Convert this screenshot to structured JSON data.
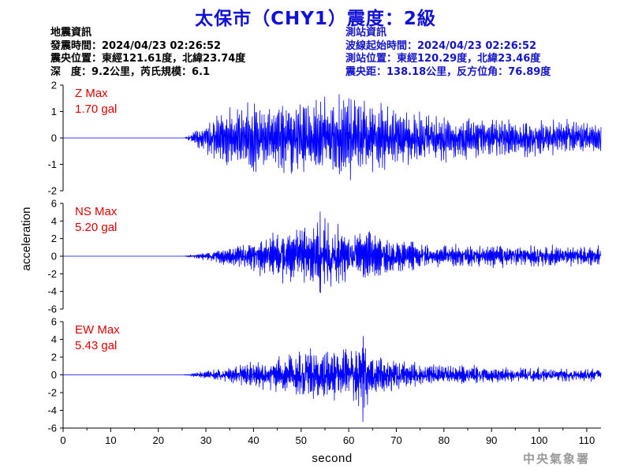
{
  "header": {
    "title": "太保市（CHY1）震度：2級",
    "footer": "中央氣象署"
  },
  "quake_info": {
    "lines": [
      "地震資訊",
      "發震時間：2024/04/23 02:26:52",
      "震央位置：東經121.61度，北緯23.74度",
      "深　度：9.2公里，芮氏規模：6.1"
    ]
  },
  "station_info": {
    "lines": [
      "測站資訊",
      "波線起始時間：2024/04/23 02:26:52",
      "測站位置：東經120.29度，北緯23.46度",
      "震央距：138.18公里，反方位角：76.89度"
    ]
  },
  "colors": {
    "trace": "#0000ff",
    "max_label": "#e00000",
    "axis": "#000000"
  },
  "chart_data": [
    {
      "type": "line",
      "component": "Z",
      "max_label": "Z Max",
      "max_value_label": "1.70 gal",
      "peak": 1.7,
      "ylim": [
        -2,
        2
      ],
      "yticks": [
        -2,
        -1,
        0,
        1,
        2
      ],
      "xlim": [
        0,
        113
      ],
      "onset": 26,
      "envelope": [
        [
          0,
          0
        ],
        [
          25.5,
          0.02
        ],
        [
          27,
          0.18
        ],
        [
          30,
          0.55
        ],
        [
          33,
          0.85
        ],
        [
          36,
          1.05
        ],
        [
          40,
          1.15
        ],
        [
          45,
          1.2
        ],
        [
          52,
          1.2
        ],
        [
          58,
          1.3
        ],
        [
          63,
          1.2
        ],
        [
          68,
          0.95
        ],
        [
          75,
          0.8
        ],
        [
          85,
          0.72
        ],
        [
          95,
          0.65
        ],
        [
          105,
          0.58
        ],
        [
          113,
          0.52
        ]
      ]
    },
    {
      "type": "line",
      "component": "NS",
      "max_label": "NS Max",
      "max_value_label": "5.20 gal",
      "peak": 5.2,
      "ylim": [
        -6,
        6
      ],
      "yticks": [
        -6,
        -4,
        -2,
        0,
        2,
        4,
        6
      ],
      "xlim": [
        0,
        113
      ],
      "onset": 26,
      "envelope": [
        [
          0,
          0
        ],
        [
          26,
          0.05
        ],
        [
          30,
          0.4
        ],
        [
          35,
          0.9
        ],
        [
          40,
          1.6
        ],
        [
          45,
          2.2
        ],
        [
          50,
          2.8
        ],
        [
          54,
          3.6
        ],
        [
          58,
          3.0
        ],
        [
          62,
          2.6
        ],
        [
          66,
          2.0
        ],
        [
          70,
          1.6
        ],
        [
          75,
          1.3
        ],
        [
          85,
          1.0
        ],
        [
          95,
          1.05
        ],
        [
          105,
          0.95
        ],
        [
          113,
          0.9
        ]
      ]
    },
    {
      "type": "line",
      "component": "EW",
      "max_label": "EW Max",
      "max_value_label": "5.43 gal",
      "peak": 5.43,
      "ylim": [
        -6,
        6
      ],
      "yticks": [
        -6,
        -4,
        -2,
        0,
        2,
        4,
        6
      ],
      "xlim": [
        0,
        113
      ],
      "onset": 26,
      "envelope": [
        [
          0,
          0
        ],
        [
          26,
          0.05
        ],
        [
          30,
          0.4
        ],
        [
          35,
          0.8
        ],
        [
          40,
          1.2
        ],
        [
          45,
          1.6
        ],
        [
          50,
          2.2
        ],
        [
          55,
          2.4
        ],
        [
          60,
          2.6
        ],
        [
          63,
          3.2
        ],
        [
          66,
          2.2
        ],
        [
          70,
          1.6
        ],
        [
          75,
          1.2
        ],
        [
          85,
          0.9
        ],
        [
          95,
          0.75
        ],
        [
          105,
          0.6
        ],
        [
          113,
          0.55
        ]
      ]
    }
  ],
  "axes": {
    "xlabel": "second",
    "ylabel": "acceleration",
    "xticks": [
      0,
      10,
      20,
      30,
      40,
      50,
      60,
      70,
      80,
      90,
      100,
      110
    ]
  }
}
